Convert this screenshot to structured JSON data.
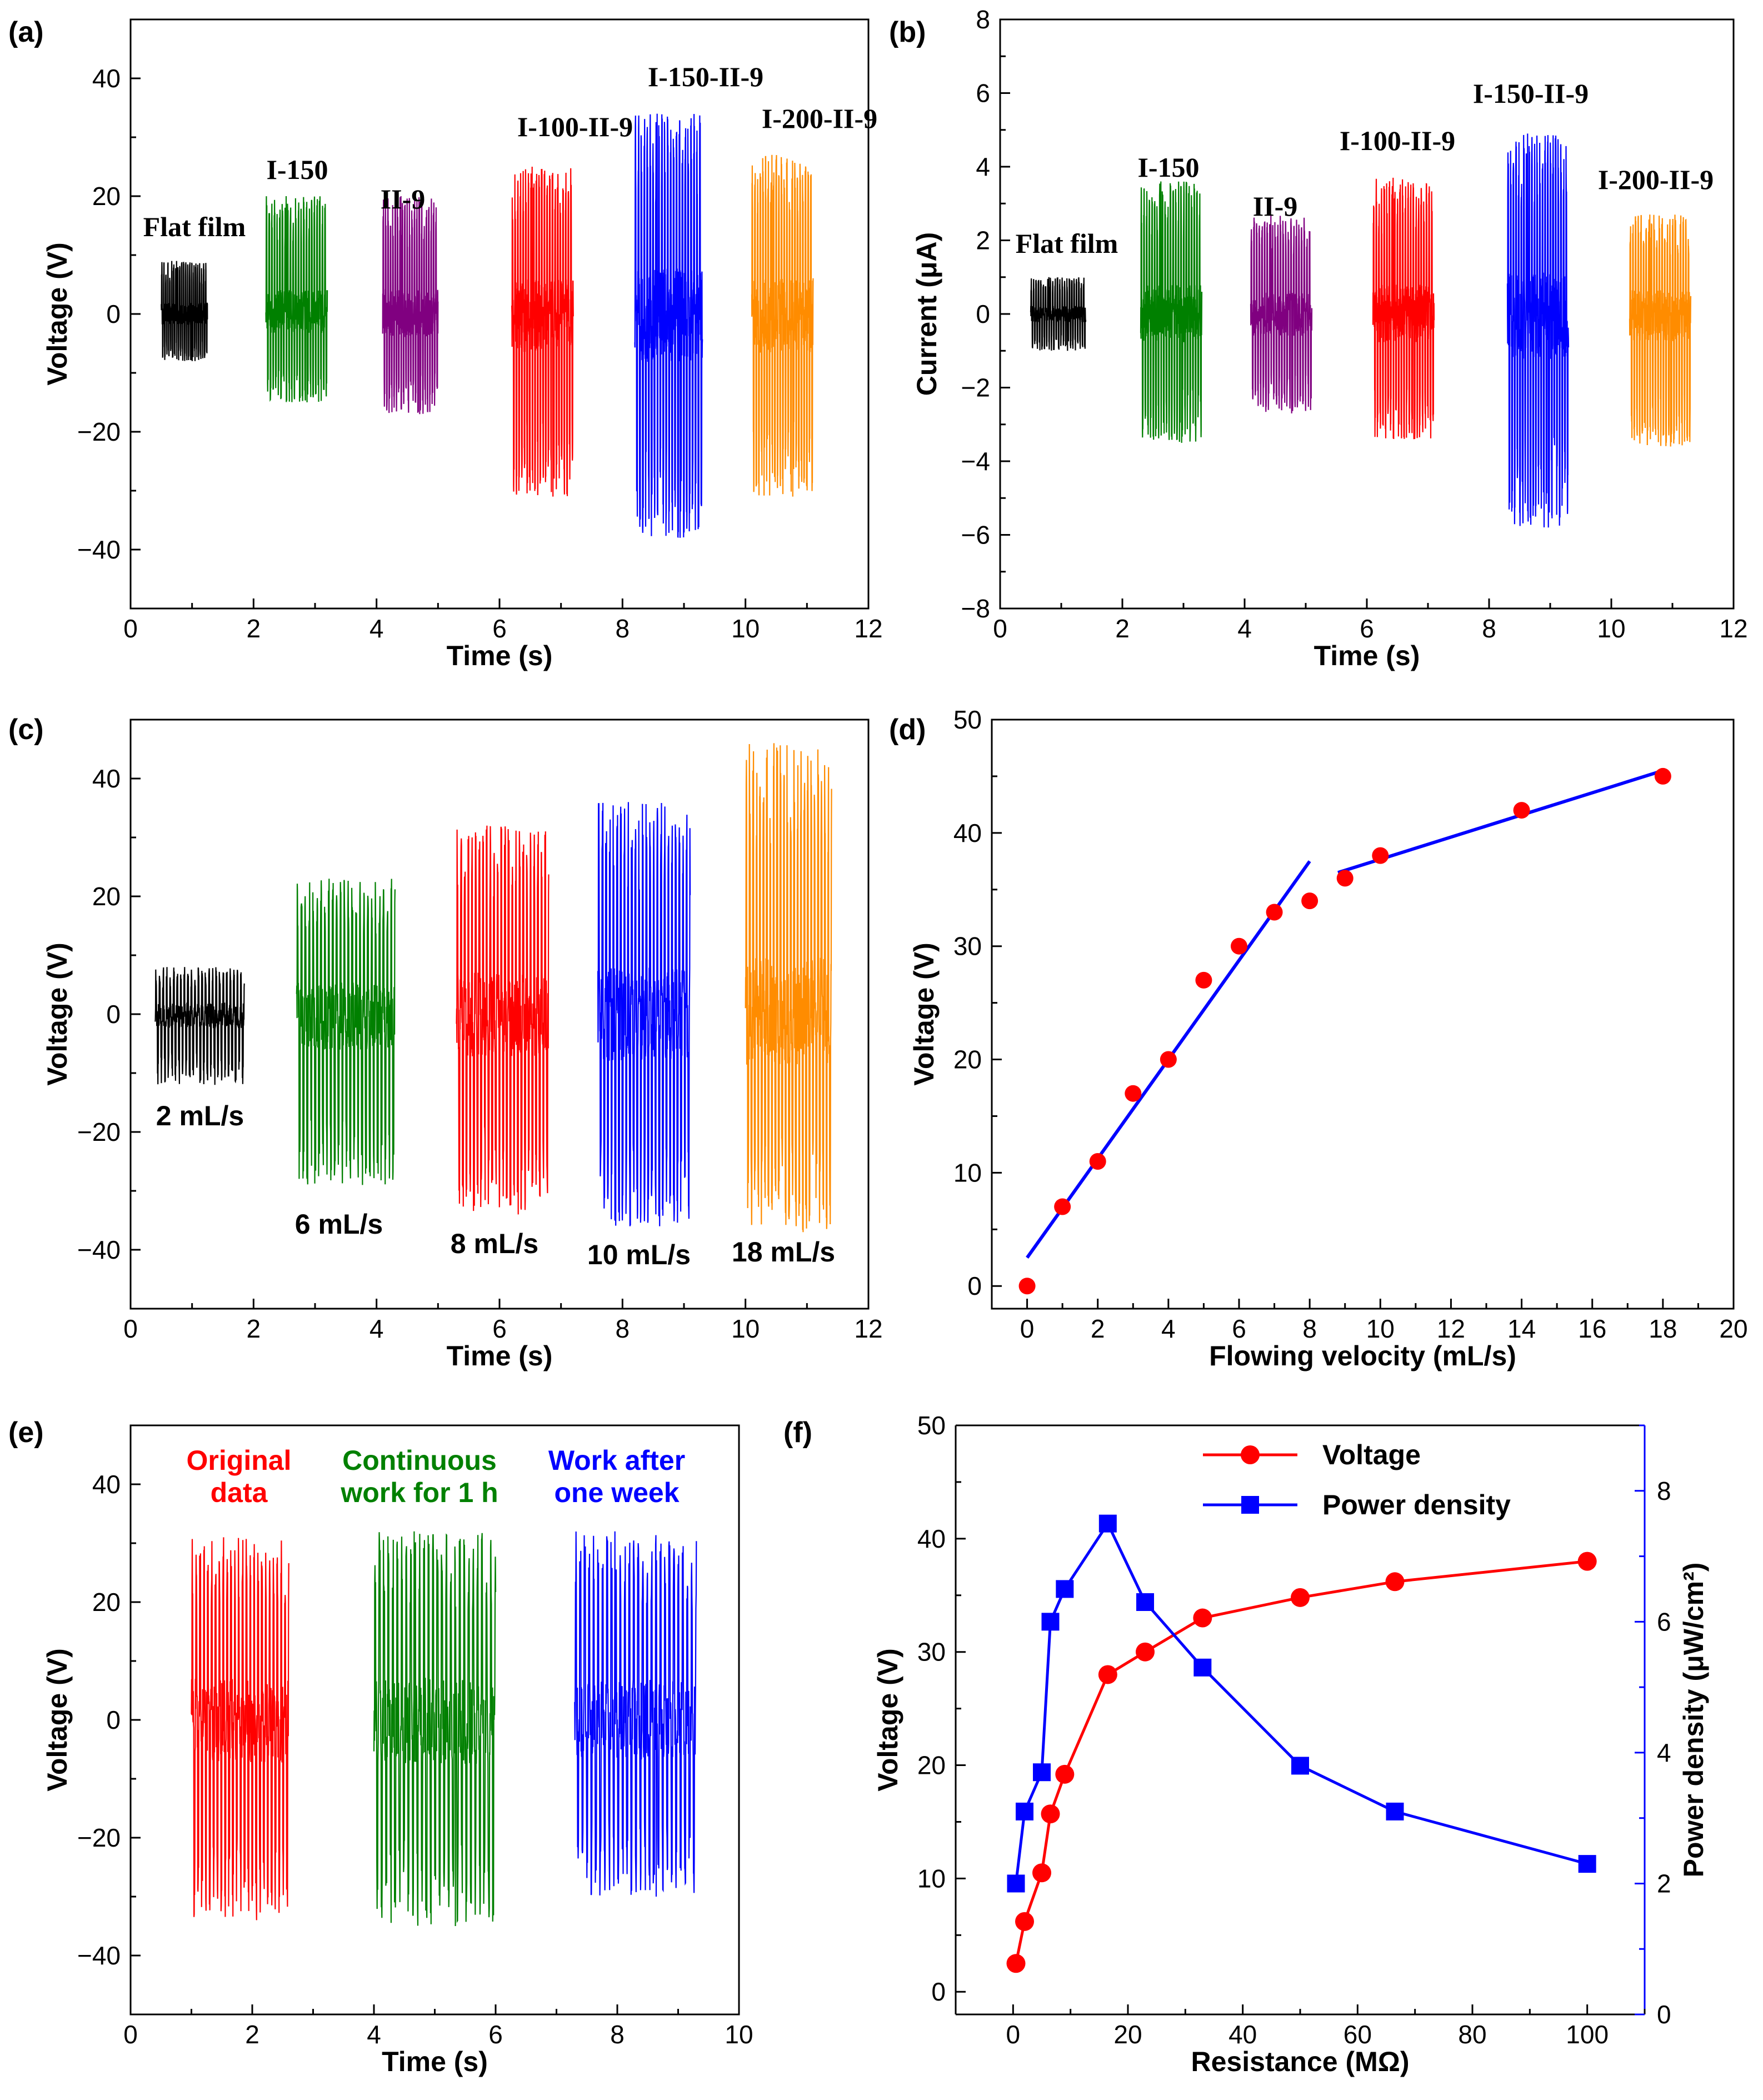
{
  "chart_data": [
    {
      "id": "a",
      "panel_label": "(a)",
      "type": "line",
      "xlabel": "Time (s)",
      "ylabel": "Voltage (V)",
      "xlim": [
        0,
        12
      ],
      "ylim": [
        -50,
        50
      ],
      "xticks": [
        "0",
        "2",
        "4",
        "6",
        "8",
        "10",
        "12"
      ],
      "yticks": [
        "−40",
        "−20",
        "0",
        "20",
        "40"
      ],
      "series": [
        {
          "name": "Flat film",
          "color": "#000000",
          "x_range": [
            0.5,
            1.25
          ],
          "v_max": 9,
          "v_min": -8
        },
        {
          "name": "I-150",
          "color": "#008000",
          "x_range": [
            2.2,
            3.2
          ],
          "v_max": 20,
          "v_min": -15
        },
        {
          "name": "II-9",
          "color": "#800080",
          "x_range": [
            4.1,
            5.0
          ],
          "v_max": 20,
          "v_min": -17
        },
        {
          "name": "I-100-II-9",
          "color": "#ff0000",
          "x_range": [
            6.2,
            7.2
          ],
          "v_max": 25,
          "v_min": -31
        },
        {
          "name": "I-150-II-9",
          "color": "#0000ff",
          "x_range": [
            8.2,
            9.3
          ],
          "v_max": 34,
          "v_min": -38
        },
        {
          "name": "I-200-II-9",
          "color": "#ff8c00",
          "x_range": [
            10.1,
            11.1
          ],
          "v_max": 27,
          "v_min": -31
        }
      ]
    },
    {
      "id": "b",
      "panel_label": "(b)",
      "type": "line",
      "xlabel": "Time (s)",
      "ylabel": "Current (μA)",
      "xlim": [
        0,
        12
      ],
      "ylim": [
        -8,
        8
      ],
      "xticks": [
        "0",
        "2",
        "4",
        "6",
        "8",
        "10",
        "12"
      ],
      "yticks": [
        "−8",
        "−6",
        "−4",
        "−2",
        "0",
        "2",
        "4",
        "6",
        "8"
      ],
      "series": [
        {
          "name": "Flat film",
          "color": "#000000",
          "x_range": [
            0.5,
            1.4
          ],
          "v_max": 1.0,
          "v_min": -1.0
        },
        {
          "name": "I-150",
          "color": "#008000",
          "x_range": [
            2.3,
            3.3
          ],
          "v_max": 3.6,
          "v_min": -3.5
        },
        {
          "name": "II-9",
          "color": "#800080",
          "x_range": [
            4.1,
            5.1
          ],
          "v_max": 2.7,
          "v_min": -2.7
        },
        {
          "name": "I-100-II-9",
          "color": "#ff0000",
          "x_range": [
            6.1,
            7.1
          ],
          "v_max": 3.7,
          "v_min": -3.4
        },
        {
          "name": "I-150-II-9",
          "color": "#0000ff",
          "x_range": [
            8.3,
            9.3
          ],
          "v_max": 4.9,
          "v_min": -5.8
        },
        {
          "name": "I-200-II-9",
          "color": "#ff8c00",
          "x_range": [
            10.3,
            11.3
          ],
          "v_max": 2.7,
          "v_min": -3.6
        }
      ]
    },
    {
      "id": "c",
      "panel_label": "(c)",
      "type": "line",
      "xlabel": "Time (s)",
      "ylabel": "Voltage (V)",
      "xlim": [
        0,
        12
      ],
      "ylim": [
        -50,
        50
      ],
      "xticks": [
        "0",
        "2",
        "4",
        "6",
        "8",
        "10",
        "12"
      ],
      "yticks": [
        "−40",
        "−20",
        "0",
        "20",
        "40"
      ],
      "series": [
        {
          "name": "2 mL/s",
          "color": "#000000",
          "x_range": [
            0.4,
            1.85
          ],
          "v_max": 8,
          "v_min": -12
        },
        {
          "name": "6 mL/s",
          "color": "#008000",
          "x_range": [
            2.7,
            4.3
          ],
          "v_max": 23,
          "v_min": -29
        },
        {
          "name": "8 mL/s",
          "color": "#ff0000",
          "x_range": [
            5.3,
            6.8
          ],
          "v_max": 32,
          "v_min": -34
        },
        {
          "name": "10 mL/s",
          "color": "#0000ff",
          "x_range": [
            7.6,
            9.1
          ],
          "v_max": 36,
          "v_min": -36
        },
        {
          "name": "18 mL/s",
          "color": "#ff8c00",
          "x_range": [
            10.0,
            11.4
          ],
          "v_max": 46,
          "v_min": -37
        }
      ]
    },
    {
      "id": "d",
      "panel_label": "(d)",
      "type": "scatter",
      "xlabel": "Flowing velocity (mL/s)",
      "ylabel": "Voltage (V)",
      "xlim": [
        -1,
        20
      ],
      "ylim": [
        -2,
        50
      ],
      "xticks": [
        "0",
        "2",
        "4",
        "6",
        "8",
        "10",
        "12",
        "14",
        "16",
        "18",
        "20"
      ],
      "yticks": [
        "0",
        "10",
        "20",
        "30",
        "40",
        "50"
      ],
      "points": {
        "x": [
          0,
          1,
          2,
          3,
          4,
          5,
          6,
          7,
          8,
          9,
          10,
          14,
          18
        ],
        "y": [
          0,
          7,
          11,
          17,
          20,
          27,
          30,
          33,
          34,
          36,
          38,
          42,
          45
        ]
      },
      "fit_lines": [
        {
          "x": [
            0,
            8
          ],
          "y": [
            2.5,
            37.5
          ]
        },
        {
          "x": [
            8.8,
            18
          ],
          "y": [
            36.5,
            45.5
          ]
        }
      ],
      "point_color": "#ff0000",
      "line_color": "#0000ff"
    },
    {
      "id": "e",
      "panel_label": "(e)",
      "type": "line",
      "xlabel": "Time (s)",
      "ylabel": "Voltage (V)",
      "xlim": [
        0,
        10
      ],
      "ylim": [
        -50,
        50
      ],
      "xticks": [
        "0",
        "2",
        "4",
        "6",
        "8",
        "10"
      ],
      "yticks": [
        "−40",
        "−20",
        "0",
        "20",
        "40"
      ],
      "series": [
        {
          "name": "Original data",
          "label_lines": [
            "Original",
            "data"
          ],
          "color": "#ff0000",
          "x_range": [
            1.0,
            2.6
          ],
          "v_max": 31,
          "v_min": -34
        },
        {
          "name": "Continuous work for 1 h",
          "label_lines": [
            "Continuous",
            "work for 1 h"
          ],
          "color": "#008000",
          "x_range": [
            4.0,
            6.0
          ],
          "v_max": 32,
          "v_min": -35
        },
        {
          "name": "Work after one week",
          "label_lines": [
            "Work after",
            "one week"
          ],
          "color": "#0000ff",
          "x_range": [
            7.3,
            9.3
          ],
          "v_max": 32,
          "v_min": -30
        }
      ]
    },
    {
      "id": "f",
      "panel_label": "(f)",
      "type": "line",
      "xlabel": "Resistance (MΩ)",
      "ylabel": "Voltage (V)",
      "y2label": "Power density (μW/cm²)",
      "xlim": [
        -10,
        110
      ],
      "ylim": [
        -2,
        50
      ],
      "y2lim": [
        0,
        9
      ],
      "xticks": [
        "0",
        "20",
        "40",
        "60",
        "80",
        "100"
      ],
      "yticks": [
        "0",
        "10",
        "20",
        "30",
        "40",
        "50"
      ],
      "y2ticks": [
        "0",
        "2",
        "4",
        "6",
        "8"
      ],
      "x": [
        0.5,
        2,
        5,
        6.5,
        9,
        16.5,
        23,
        33,
        50,
        66.5,
        100
      ],
      "series": [
        {
          "name": "Voltage",
          "axis": "left",
          "color": "#ff0000",
          "marker": "circle",
          "values": [
            2.5,
            6.2,
            10.5,
            15.7,
            19.2,
            28,
            30,
            33,
            34.8,
            36.2,
            38
          ]
        },
        {
          "name": "Power density",
          "axis": "right",
          "color": "#0000ff",
          "marker": "square",
          "values": [
            2.0,
            3.1,
            3.7,
            6.0,
            6.5,
            7.5,
            6.3,
            5.3,
            3.8,
            3.1,
            2.3
          ]
        }
      ]
    }
  ]
}
